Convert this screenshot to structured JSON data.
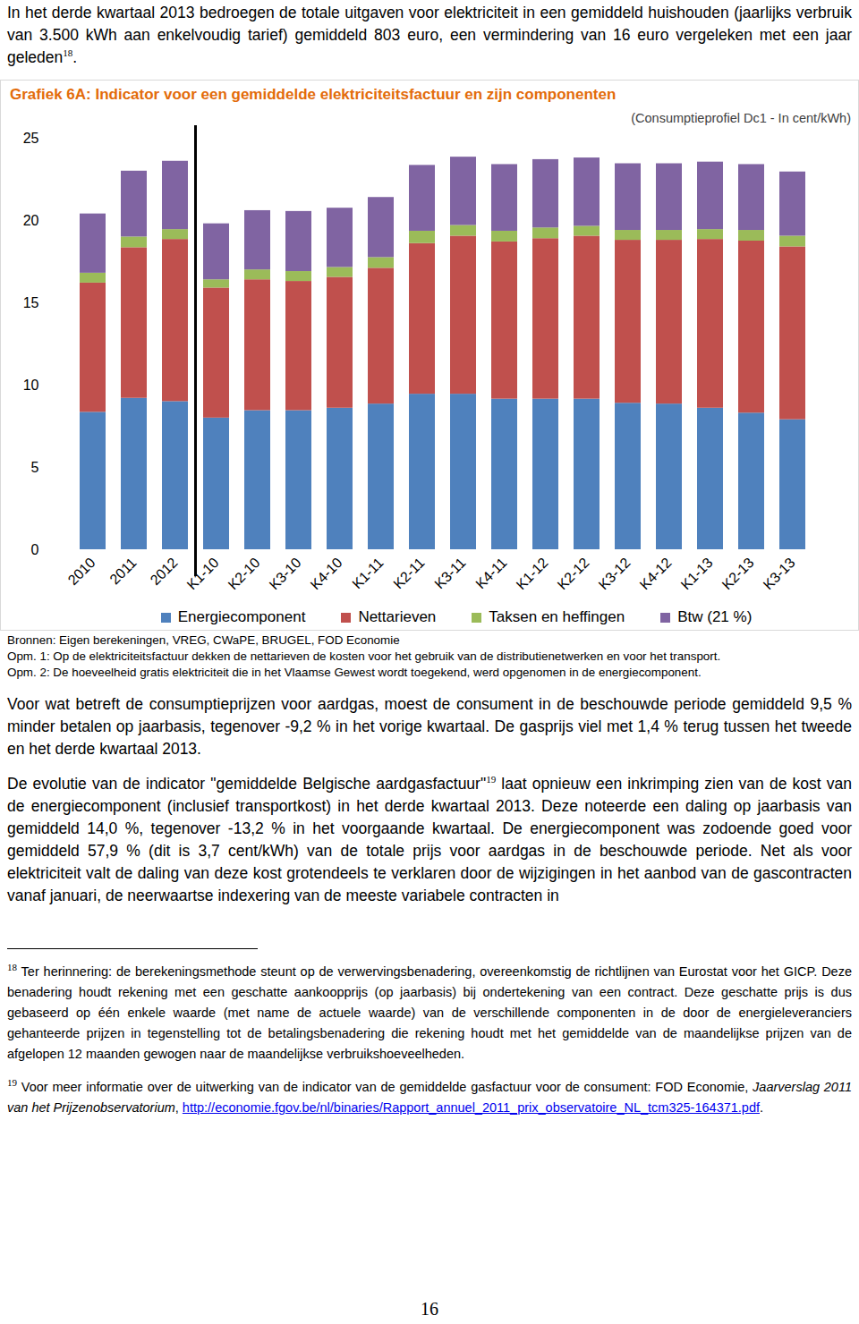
{
  "intro": [
    {
      "t": "In het derde kwartaal 2013 bedroegen de totale uitgaven voor elektriciteit in een gemiddeld huishouden (jaarlijks verbruik van 3.500 kWh aan enkelvoudig tarief) gemiddeld 803 euro, een vermindering van 16 euro vergeleken met een jaar geleden"
    },
    {
      "sup": "18"
    },
    {
      "t": "."
    }
  ],
  "chart_data": {
    "type": "bar",
    "stacked": true,
    "title": "Grafiek 6A: Indicator voor een gemiddelde elektriciteitsfactuur en zijn componenten",
    "subtitle": "(Consumptieprofiel Dc1 - In cent/kWh)",
    "categories": [
      "2010",
      "2011",
      "2012",
      "K1-10",
      "K2-10",
      "K3-10",
      "K4-10",
      "K1-11",
      "K2-11",
      "K3-11",
      "K4-11",
      "K1-12",
      "K2-12",
      "K3-12",
      "K4-12",
      "K1-13",
      "K2-13",
      "K3-13"
    ],
    "series": [
      {
        "name": "Energiecomponent",
        "color": "#4f81bd",
        "values": [
          8.35,
          9.2,
          9.0,
          8.0,
          8.45,
          8.45,
          8.6,
          8.85,
          9.45,
          9.45,
          9.15,
          9.15,
          9.15,
          8.9,
          8.85,
          8.6,
          8.3,
          7.9
        ]
      },
      {
        "name": "Nettarieven",
        "color": "#c0504d",
        "values": [
          7.85,
          9.15,
          9.85,
          7.9,
          7.95,
          7.85,
          7.95,
          8.25,
          9.15,
          9.6,
          9.55,
          9.75,
          9.9,
          9.9,
          9.95,
          10.25,
          10.45,
          10.5
        ]
      },
      {
        "name": "Taksen en heffingen",
        "color": "#9bbb59",
        "values": [
          0.6,
          0.65,
          0.6,
          0.5,
          0.6,
          0.6,
          0.6,
          0.65,
          0.75,
          0.65,
          0.65,
          0.65,
          0.6,
          0.6,
          0.6,
          0.6,
          0.65,
          0.65
        ]
      },
      {
        "name": "Btw (21 %)",
        "color": "#8064a2",
        "values": [
          3.6,
          4.0,
          4.15,
          3.4,
          3.6,
          3.65,
          3.6,
          3.65,
          4.0,
          4.15,
          4.05,
          4.15,
          4.15,
          4.05,
          4.05,
          4.1,
          4.0,
          3.9
        ]
      }
    ],
    "ylim": [
      0,
      25
    ],
    "yticks": [
      0,
      5,
      10,
      15,
      20,
      25
    ],
    "grid": false,
    "legend": "bottom"
  },
  "chart_notes": [
    "Bronnen: Eigen berekeningen, VREG, CWaPE, BRUGEL, FOD Economie",
    "Opm. 1: Op de elektriciteitsfactuur dekken de nettarieven de kosten voor het gebruik van de distributienetwerken en voor het transport.",
    "Opm. 2: De hoeveelheid gratis elektriciteit die in het Vlaamse Gewest wordt toegekend, werd opgenomen in de energiecomponent."
  ],
  "paragraphs": [
    [
      {
        "t": "Voor wat betreft de consumptieprijzen voor aardgas, moest de consument in de beschouwde periode gemiddeld 9,5 % minder betalen op jaarbasis, tegenover -9,2 % in het vorige kwartaal. De gasprijs viel met 1,4 % terug tussen het tweede en het derde kwartaal 2013."
      }
    ],
    [
      {
        "t": "De evolutie van de indicator \"gemiddelde Belgische aardgasfactuur\""
      },
      {
        "sup": "19"
      },
      {
        "t": " laat opnieuw een inkrimping zien van de kost van de energiecomponent (inclusief transportkost) in het derde kwartaal 2013. Deze noteerde een daling op jaarbasis van gemiddeld 14,0 %, tegenover -13,2 % in het voorgaande kwartaal. De energiecomponent was zodoende goed voor gemiddeld 57,9 % (dit is 3,7 cent/kWh) van de totale prijs voor aardgas in de beschouwde periode. Net als voor elektriciteit valt de daling van deze kost grotendeels te verklaren door de wijzigingen in het aanbod van de gascontracten vanaf januari, de neerwaartse indexering van de meeste variabele contracten in"
      }
    ]
  ],
  "footnotes": [
    [
      {
        "sup": "18"
      },
      {
        "t": " Ter herinnering: de berekeningsmethode steunt op de verwervingsbenadering, overeenkomstig de richtlijnen van Eurostat voor het GICP. Deze benadering houdt rekening met een geschatte aankoopprijs (op jaarbasis) bij ondertekening van een contract. Deze geschatte prijs is dus gebaseerd op één enkele waarde (met name de actuele waarde) van de verschillende componenten in de door de energieleveranciers gehanteerde prijzen in tegenstelling tot de betalingsbenadering die rekening houdt met het gemiddelde van de maandelijkse prijzen van de afgelopen 12 maanden gewogen naar de maandelijkse verbruikshoeveelheden."
      }
    ],
    [
      {
        "sup": "19"
      },
      {
        "t": " Voor meer informatie over de uitwerking van de indicator van de gemiddelde gasfactuur voor de consument: FOD Economie, "
      },
      {
        "em": "Jaarverslag 2011 van het Prijzenobservatorium"
      },
      {
        "t": ", "
      },
      {
        "link": "http://economie.fgov.be/nl/binaries/Rapport_annuel_2011_prix_observatoire_NL_tcm325-164371.pdf"
      },
      {
        "t": "."
      }
    ]
  ],
  "page_number": "16"
}
